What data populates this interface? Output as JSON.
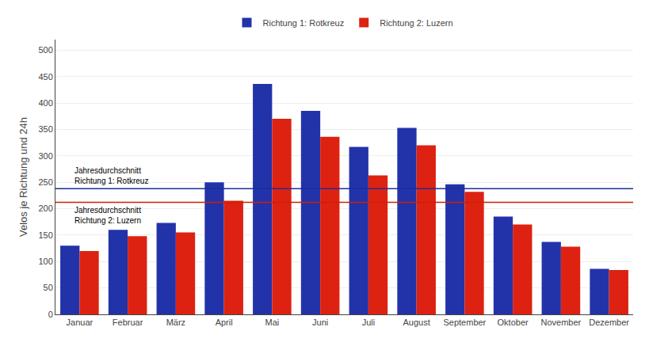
{
  "chart_data": {
    "type": "bar",
    "categories": [
      "Januar",
      "Februar",
      "März",
      "April",
      "Mai",
      "Juni",
      "Juli",
      "August",
      "September",
      "Oktober",
      "November",
      "Dezember"
    ],
    "series": [
      {
        "name": "Richtung 1: Rotkreuz",
        "color": "#2233aa",
        "values": [
          130,
          160,
          173,
          250,
          436,
          385,
          317,
          353,
          246,
          185,
          137,
          86
        ]
      },
      {
        "name": "Richtung 2: Luzern",
        "color": "#dd2211",
        "values": [
          120,
          148,
          155,
          215,
          370,
          336,
          263,
          320,
          232,
          170,
          128,
          84
        ]
      }
    ],
    "reference_lines": [
      {
        "value": 238,
        "color": "#1a2e99",
        "annotation": [
          "Jahresdurchschnitt",
          "Richtung 1: Rotkreuz"
        ]
      },
      {
        "value": 212,
        "color": "#cc2200",
        "annotation": [
          "Jahresdurchschnitt",
          "Richtung 2: Luzern"
        ]
      }
    ],
    "ylabel": "Velos je Richtung und 24h",
    "ylim": [
      0,
      520
    ],
    "yticks": [
      0,
      50,
      100,
      150,
      200,
      250,
      300,
      350,
      400,
      450,
      500
    ],
    "grid": true,
    "legend": "top"
  }
}
